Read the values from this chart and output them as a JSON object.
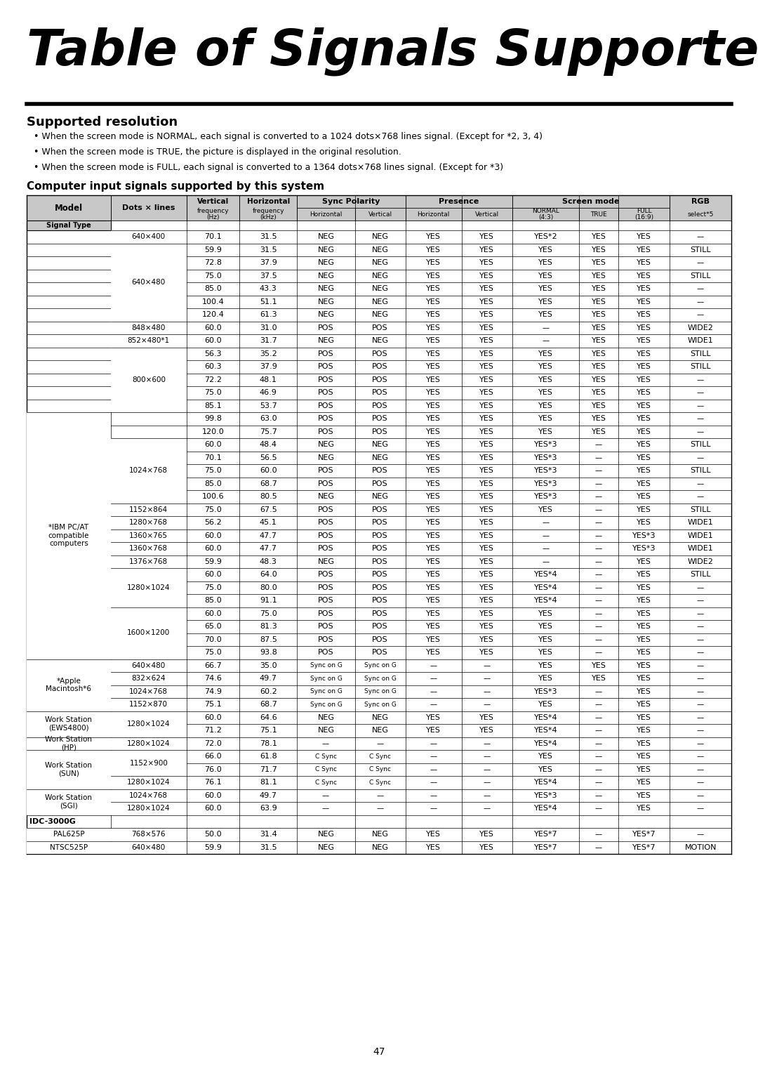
{
  "title": "Table of Signals Supported",
  "section_title": "Supported resolution",
  "bullets": [
    "When the screen mode is NORMAL, each signal is converted to a 1024 dots×768 lines signal. (Except for *2, 3, 4)",
    "When the screen mode is TRUE, the picture is displayed in the original resolution.",
    "When the screen mode is FULL, each signal is converted to a 1364 dots×768 lines signal. (Except for *3)"
  ],
  "subsection_title": "Computer input signals supported by this system",
  "rows": [
    [
      "",
      "640×400",
      "70.1",
      "31.5",
      "NEG",
      "NEG",
      "YES",
      "YES",
      "YES*2",
      "YES",
      "YES",
      "––"
    ],
    [
      "",
      "640×480",
      "59.9",
      "31.5",
      "NEG",
      "NEG",
      "YES",
      "YES",
      "YES",
      "YES",
      "YES",
      "STILL"
    ],
    [
      "",
      "",
      "72.8",
      "37.9",
      "NEG",
      "NEG",
      "YES",
      "YES",
      "YES",
      "YES",
      "YES",
      "––"
    ],
    [
      "",
      "",
      "75.0",
      "37.5",
      "NEG",
      "NEG",
      "YES",
      "YES",
      "YES",
      "YES",
      "YES",
      "STILL"
    ],
    [
      "",
      "",
      "85.0",
      "43.3",
      "NEG",
      "NEG",
      "YES",
      "YES",
      "YES",
      "YES",
      "YES",
      "––"
    ],
    [
      "",
      "",
      "100.4",
      "51.1",
      "NEG",
      "NEG",
      "YES",
      "YES",
      "YES",
      "YES",
      "YES",
      "––"
    ],
    [
      "",
      "",
      "120.4",
      "61.3",
      "NEG",
      "NEG",
      "YES",
      "YES",
      "YES",
      "YES",
      "YES",
      "––"
    ],
    [
      "",
      "848×480",
      "60.0",
      "31.0",
      "POS",
      "POS",
      "YES",
      "YES",
      "––",
      "YES",
      "YES",
      "WIDE2"
    ],
    [
      "",
      "852×480*1",
      "60.0",
      "31.7",
      "NEG",
      "NEG",
      "YES",
      "YES",
      "––",
      "YES",
      "YES",
      "WIDE1"
    ],
    [
      "",
      "800×600",
      "56.3",
      "35.2",
      "POS",
      "POS",
      "YES",
      "YES",
      "YES",
      "YES",
      "YES",
      "STILL"
    ],
    [
      "",
      "",
      "60.3",
      "37.9",
      "POS",
      "POS",
      "YES",
      "YES",
      "YES",
      "YES",
      "YES",
      "STILL"
    ],
    [
      "",
      "",
      "72.2",
      "48.1",
      "POS",
      "POS",
      "YES",
      "YES",
      "YES",
      "YES",
      "YES",
      "––"
    ],
    [
      "",
      "",
      "75.0",
      "46.9",
      "POS",
      "POS",
      "YES",
      "YES",
      "YES",
      "YES",
      "YES",
      "––"
    ],
    [
      "",
      "",
      "85.1",
      "53.7",
      "POS",
      "POS",
      "YES",
      "YES",
      "YES",
      "YES",
      "YES",
      "––"
    ],
    [
      "*IBM PC/AT compatible computers",
      "",
      "99.8",
      "63.0",
      "POS",
      "POS",
      "YES",
      "YES",
      "YES",
      "YES",
      "YES",
      "––"
    ],
    [
      "",
      "",
      "120.0",
      "75.7",
      "POS",
      "POS",
      "YES",
      "YES",
      "YES",
      "YES",
      "YES",
      "––"
    ],
    [
      "",
      "1024×768",
      "60.0",
      "48.4",
      "NEG",
      "NEG",
      "YES",
      "YES",
      "YES*3",
      "––",
      "YES",
      "STILL"
    ],
    [
      "",
      "",
      "70.1",
      "56.5",
      "NEG",
      "NEG",
      "YES",
      "YES",
      "YES*3",
      "––",
      "YES",
      "––"
    ],
    [
      "",
      "",
      "75.0",
      "60.0",
      "POS",
      "POS",
      "YES",
      "YES",
      "YES*3",
      "––",
      "YES",
      "STILL"
    ],
    [
      "",
      "",
      "85.0",
      "68.7",
      "POS",
      "POS",
      "YES",
      "YES",
      "YES*3",
      "––",
      "YES",
      "––"
    ],
    [
      "",
      "",
      "100.6",
      "80.5",
      "NEG",
      "NEG",
      "YES",
      "YES",
      "YES*3",
      "––",
      "YES",
      "––"
    ],
    [
      "",
      "1152×864",
      "75.0",
      "67.5",
      "POS",
      "POS",
      "YES",
      "YES",
      "YES",
      "––",
      "YES",
      "STILL"
    ],
    [
      "",
      "1280×768",
      "56.2",
      "45.1",
      "POS",
      "POS",
      "YES",
      "YES",
      "––",
      "––",
      "YES",
      "WIDE1"
    ],
    [
      "",
      "1360×765",
      "60.0",
      "47.7",
      "POS",
      "POS",
      "YES",
      "YES",
      "––",
      "––",
      "YES*3",
      "WIDE1"
    ],
    [
      "",
      "1360×768",
      "60.0",
      "47.7",
      "POS",
      "POS",
      "YES",
      "YES",
      "––",
      "––",
      "YES*3",
      "WIDE1"
    ],
    [
      "",
      "1376×768",
      "59.9",
      "48.3",
      "NEG",
      "POS",
      "YES",
      "YES",
      "––",
      "––",
      "YES",
      "WIDE2"
    ],
    [
      "",
      "1280×1024",
      "60.0",
      "64.0",
      "POS",
      "POS",
      "YES",
      "YES",
      "YES*4",
      "––",
      "YES",
      "STILL"
    ],
    [
      "",
      "",
      "75.0",
      "80.0",
      "POS",
      "POS",
      "YES",
      "YES",
      "YES*4",
      "––",
      "YES",
      "––"
    ],
    [
      "",
      "",
      "85.0",
      "91.1",
      "POS",
      "POS",
      "YES",
      "YES",
      "YES*4",
      "––",
      "YES",
      "––"
    ],
    [
      "",
      "1600×1200",
      "60.0",
      "75.0",
      "POS",
      "POS",
      "YES",
      "YES",
      "YES",
      "––",
      "YES",
      "––"
    ],
    [
      "",
      "",
      "65.0",
      "81.3",
      "POS",
      "POS",
      "YES",
      "YES",
      "YES",
      "––",
      "YES",
      "––"
    ],
    [
      "",
      "",
      "70.0",
      "87.5",
      "POS",
      "POS",
      "YES",
      "YES",
      "YES",
      "––",
      "YES",
      "––"
    ],
    [
      "",
      "",
      "75.0",
      "93.8",
      "POS",
      "POS",
      "YES",
      "YES",
      "YES",
      "––",
      "YES",
      "––"
    ],
    [
      "*Apple Macintosh*6",
      "640×480",
      "66.7",
      "35.0",
      "Sync on G",
      "Sync on G",
      "––",
      "––",
      "YES",
      "YES",
      "YES",
      "––"
    ],
    [
      "",
      "832×624",
      "74.6",
      "49.7",
      "Sync on G",
      "Sync on G",
      "––",
      "––",
      "YES",
      "YES",
      "YES",
      "––"
    ],
    [
      "",
      "1024×768",
      "74.9",
      "60.2",
      "Sync on G",
      "Sync on G",
      "––",
      "––",
      "YES*3",
      "––",
      "YES",
      "––"
    ],
    [
      "",
      "1152×870",
      "75.1",
      "68.7",
      "Sync on G",
      "Sync on G",
      "––",
      "––",
      "YES",
      "––",
      "YES",
      "––"
    ],
    [
      "Work Station (EWS4800)",
      "1280×1024",
      "60.0",
      "64.6",
      "NEG",
      "NEG",
      "YES",
      "YES",
      "YES*4",
      "––",
      "YES",
      "––"
    ],
    [
      "",
      "",
      "71.2",
      "75.1",
      "NEG",
      "NEG",
      "YES",
      "YES",
      "YES*4",
      "––",
      "YES",
      "––"
    ],
    [
      "Work Station (HP)",
      "1280×1024",
      "72.0",
      "78.1",
      "––",
      "––",
      "––",
      "––",
      "YES*4",
      "––",
      "YES",
      "––"
    ],
    [
      "Work Station (SUN)",
      "1152×900",
      "66.0",
      "61.8",
      "C Sync",
      "C Sync",
      "––",
      "––",
      "YES",
      "––",
      "YES",
      "––"
    ],
    [
      "",
      "",
      "76.0",
      "71.7",
      "C Sync",
      "C Sync",
      "––",
      "––",
      "YES",
      "––",
      "YES",
      "––"
    ],
    [
      "",
      "1280×1024",
      "76.1",
      "81.1",
      "C Sync",
      "C Sync",
      "––",
      "––",
      "YES*4",
      "––",
      "YES",
      "––"
    ],
    [
      "Work Station (SGI)",
      "1024×768",
      "60.0",
      "49.7",
      "––",
      "––",
      "––",
      "––",
      "YES*3",
      "––",
      "YES",
      "––"
    ],
    [
      "",
      "1280×1024",
      "60.0",
      "63.9",
      "––",
      "––",
      "––",
      "––",
      "YES*4",
      "––",
      "YES",
      "––"
    ],
    [
      "IDC-3000G",
      "",
      "",
      "",
      "",
      "",
      "",
      "",
      "",
      "",
      "",
      ""
    ],
    [
      "PAL625P",
      "768×576",
      "50.0",
      "31.4",
      "NEG",
      "NEG",
      "YES",
      "YES",
      "YES*7",
      "––",
      "YES*7",
      "––"
    ],
    [
      "NTSC525P",
      "640×480",
      "59.9",
      "31.5",
      "NEG",
      "NEG",
      "YES",
      "YES",
      "YES*7",
      "––",
      "YES*7",
      "MOTION"
    ]
  ],
  "model_display": [
    [
      "",
      33
    ],
    [
      "*IBM PC/AT\ncompatible\ncomputers",
      2
    ],
    [
      "*Apple\nMacintosh*6",
      4
    ],
    [
      "Work Station\n(EWS4800)",
      2
    ],
    [
      "Work Station\n(HP)",
      1
    ],
    [
      "Work Station\n(SUN)",
      3
    ],
    [
      "Work Station\n(SGI)",
      2
    ],
    [
      "IDC-3000G",
      0
    ],
    [
      "PAL625P",
      1
    ],
    [
      "NTSC525P",
      1
    ]
  ],
  "footer_page": "47",
  "bg_color": "#ffffff",
  "header_bg": "#c8c8c8"
}
